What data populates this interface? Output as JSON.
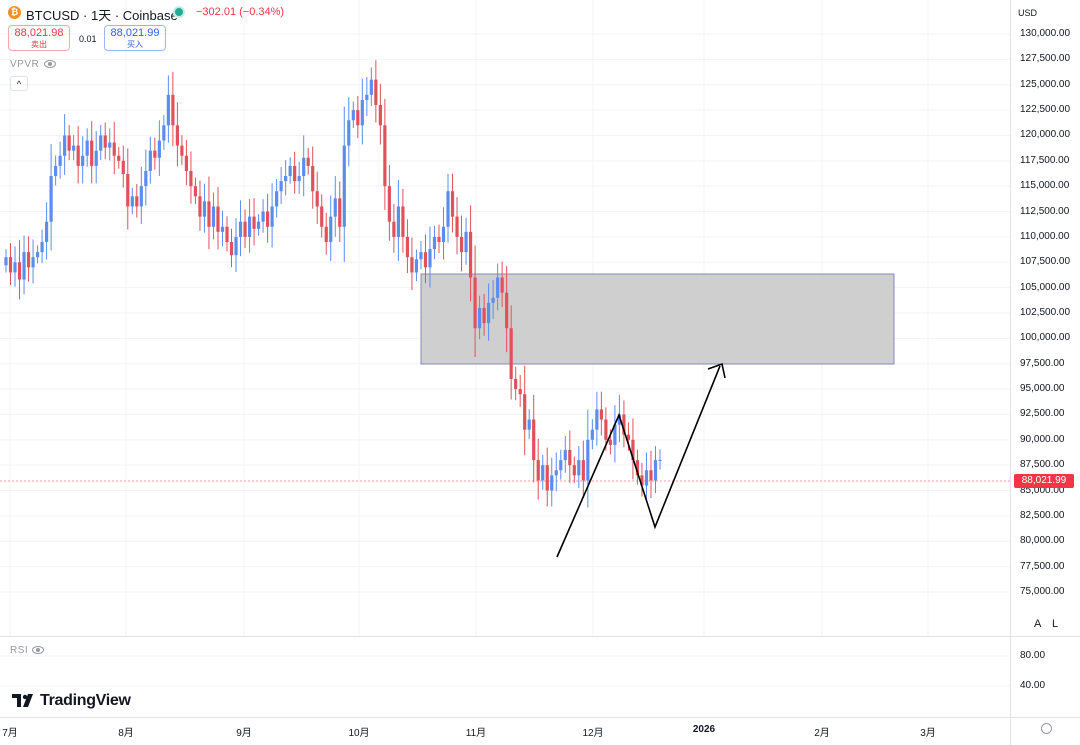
{
  "header": {
    "title": "BTCUSD · 1天 · Coinbase",
    "coin_icon_glyph": "₿",
    "change": "−302.01 (−0.34%)",
    "sell_price": "88,021.98",
    "sell_label": "卖出",
    "spread": "0.01",
    "buy_price": "88,021.99",
    "buy_label": "买入"
  },
  "indicators": {
    "vpvr_label": "VPVR",
    "rsi_label": "RSI",
    "collapse_glyph": "^"
  },
  "axis": {
    "currency": "USD",
    "price_ticks": [
      "130,000.00",
      "127,500.00",
      "125,000.00",
      "122,500.00",
      "120,000.00",
      "117,500.00",
      "115,000.00",
      "112,500.00",
      "110,000.00",
      "107,500.00",
      "105,000.00",
      "102,500.00",
      "100,000.00",
      "97,500.00",
      "95,000.00",
      "92,500.00",
      "90,000.00",
      "87,500.00",
      "85,000.00",
      "82,500.00",
      "80,000.00",
      "77,500.00",
      "75,000.00"
    ],
    "current_price": "88,021.99",
    "rsi_ticks": [
      "80.00",
      "40.00"
    ],
    "auto_label": "A",
    "log_label": "L"
  },
  "time_axis": {
    "labels": [
      "7月",
      "8月",
      "9月",
      "10月",
      "11月",
      "12月",
      "2026",
      "2月",
      "3月"
    ]
  },
  "branding": {
    "logo_text": "TradingView"
  },
  "colors": {
    "up": "#5b8def",
    "down": "#e0525b",
    "zone_fill": "#cccccc",
    "zone_border": "#8a87b8",
    "current_price": "#f23645"
  },
  "chart_data": {
    "type": "candlestick",
    "symbol": "BTCUSD",
    "interval": "1天",
    "exchange": "Coinbase",
    "ylim": [
      75000,
      131000
    ],
    "close_series": [
      108000,
      106500,
      107500,
      105800,
      108500,
      107000,
      108000,
      108500,
      109500,
      111500,
      116000,
      117000,
      118000,
      120000,
      118500,
      119000,
      117000,
      118000,
      119500,
      117000,
      118500,
      120000,
      118800,
      119300,
      118000,
      117500,
      116200,
      113000,
      114000,
      113000,
      115000,
      116500,
      118500,
      117800,
      119500,
      121000,
      124000,
      121000,
      119000,
      118000,
      116500,
      115000,
      114000,
      112000,
      113500,
      111000,
      113000,
      110500,
      111000,
      109500,
      108200,
      110000,
      111500,
      110000,
      112000,
      110800,
      111500,
      112500,
      111000,
      113000,
      114500,
      115500,
      116000,
      117000,
      115500,
      116000,
      117800,
      117000,
      114500,
      113000,
      111000,
      109500,
      112000,
      113800,
      111000,
      119000,
      121500,
      122500,
      121000,
      123500,
      124000,
      125500,
      123000,
      121000,
      115000,
      111500,
      110000,
      113000,
      110000,
      108000,
      106500,
      107800,
      108500,
      107000,
      108800,
      110000,
      109500,
      111000,
      114500,
      112000,
      110000,
      108500,
      110500,
      106000,
      101000,
      103000,
      101500,
      103500,
      104000,
      106000,
      104500,
      101000,
      96000,
      95000,
      94500,
      91000,
      92000,
      88000,
      86000,
      87500,
      85000,
      86500,
      87000,
      88000,
      89000,
      87500,
      86500,
      88000,
      86000,
      90000,
      91000,
      93000,
      92000,
      90000,
      89500,
      91500,
      92500,
      90500,
      90000,
      88000,
      86500,
      85500,
      87000,
      86000,
      88000,
      88022
    ],
    "zone": {
      "price_high": 107400,
      "price_low": 99000
    },
    "annotations": [
      {
        "type": "zigzag-arrow",
        "points_price": [
          80500,
          94000,
          83500,
          99000
        ]
      }
    ],
    "x_labels": [
      "7月",
      "8月",
      "9月",
      "10月",
      "11月",
      "12月",
      "2026",
      "2月",
      "3月"
    ]
  }
}
